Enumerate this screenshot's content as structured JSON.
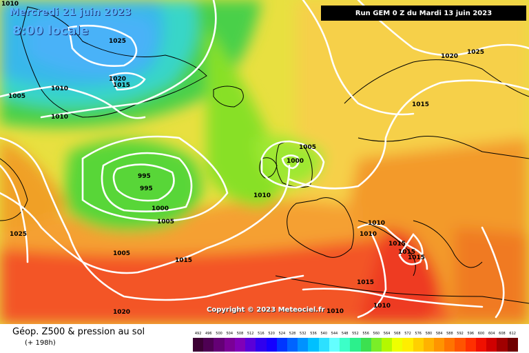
{
  "map": {
    "date_line": "Mercredi 21 juin 2023",
    "time_line": "8:00 locale",
    "run_info": "Run GEM 0 Z du Mardi 13 juin 2023",
    "copyright": "Copyright © 2023 Meteociel.fr",
    "isobar_labels": [
      "1010",
      "1025",
      "1020",
      "1015",
      "1010",
      "1005",
      "1010",
      "995",
      "995",
      "1000",
      "1005",
      "1025",
      "1005",
      "1015",
      "1010",
      "1005",
      "1000",
      "1015",
      "1020",
      "1025",
      "1010",
      "1010",
      "1015",
      "1015",
      "1015",
      "1015",
      "1010",
      "1020",
      "1010"
    ]
  },
  "legend": {
    "title": "Géop. Z500 & pression au sol",
    "subtitle": "(+ 198h)",
    "scale": [
      "492",
      "496",
      "500",
      "504",
      "508",
      "512",
      "516",
      "520",
      "524",
      "528",
      "532",
      "536",
      "540",
      "544",
      "548",
      "552",
      "556",
      "560",
      "564",
      "568",
      "572",
      "576",
      "580",
      "584",
      "588",
      "592",
      "596",
      "600",
      "604",
      "608",
      "612"
    ],
    "colors": [
      "#3c0034",
      "#4e0053",
      "#640075",
      "#7a0096",
      "#8000b8",
      "#5a00d8",
      "#3000ee",
      "#1400ff",
      "#0036ff",
      "#0064ff",
      "#0092ff",
      "#00c0ff",
      "#2ce0ff",
      "#64ffff",
      "#3cffc8",
      "#2cf08c",
      "#3ce050",
      "#7aee28",
      "#b4f800",
      "#eeff00",
      "#ffee00",
      "#ffd000",
      "#ffb200",
      "#ff9400",
      "#ff7400",
      "#ff5400",
      "#ff3000",
      "#f01000",
      "#d00000",
      "#a00000",
      "#700000"
    ]
  }
}
